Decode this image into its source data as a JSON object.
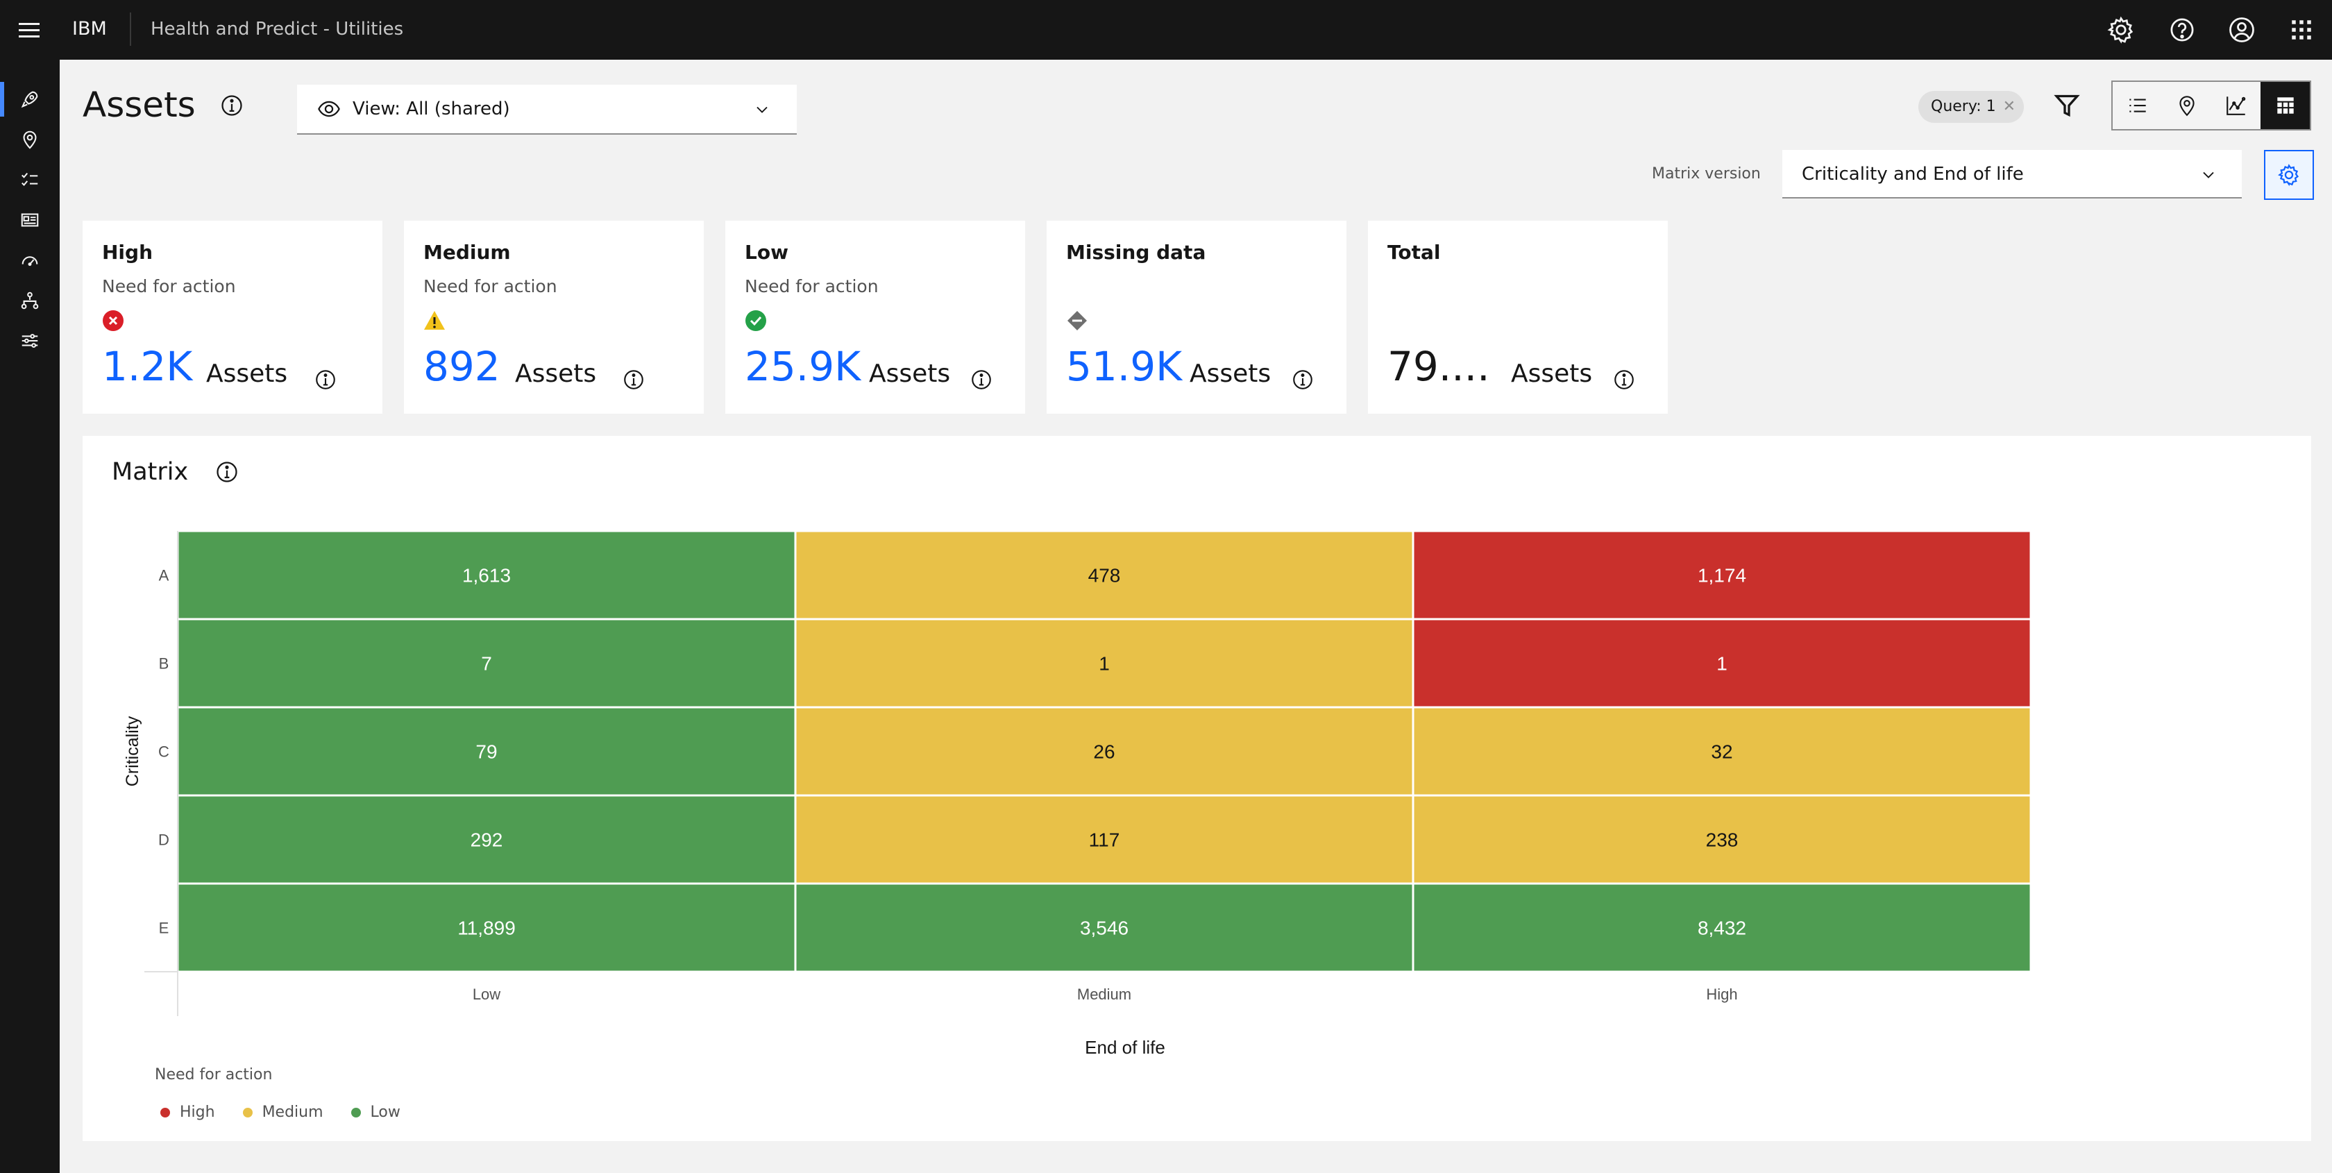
{
  "header": {
    "brand": "IBM",
    "product": "Health and Predict - Utilities",
    "icons": [
      "settings-icon",
      "help-icon",
      "user-avatar-icon",
      "app-switcher-icon"
    ]
  },
  "sidebar": {
    "items": [
      {
        "name": "sidebar-item-assets",
        "icon": "rocket-icon",
        "active": true
      },
      {
        "name": "sidebar-item-locations",
        "icon": "location-icon",
        "active": false
      },
      {
        "name": "sidebar-item-checklist",
        "icon": "checklist-icon",
        "active": false
      },
      {
        "name": "sidebar-item-id",
        "icon": "id-card-icon",
        "active": false
      },
      {
        "name": "sidebar-item-meter",
        "icon": "meter-icon",
        "active": false
      },
      {
        "name": "sidebar-item-hierarchy",
        "icon": "hierarchy-icon",
        "active": false
      },
      {
        "name": "sidebar-item-settings",
        "icon": "settings-adjust-icon",
        "active": false
      }
    ]
  },
  "page": {
    "title": "Assets",
    "view_label": "View: All (shared)",
    "query_tag": "Query: 1",
    "matrix_version_label": "Matrix version",
    "matrix_version_value": "Criticality and End of life"
  },
  "cards": [
    {
      "title": "High",
      "subtitle": "Need for action",
      "status": "error-icon",
      "value": "1.2K",
      "unit": "Assets",
      "color": "#da1e28"
    },
    {
      "title": "Medium",
      "subtitle": "Need for action",
      "status": "warning-icon",
      "value": "892",
      "unit": "Assets",
      "color": "#f1c21b"
    },
    {
      "title": "Low",
      "subtitle": "Need for action",
      "status": "checkmark-icon",
      "value": "25.9K",
      "unit": "Assets",
      "color": "#24a148"
    },
    {
      "title": "Missing data",
      "subtitle": "",
      "status": "missing-data-icon",
      "value": "51.9K",
      "unit": "Assets",
      "color": "#6f6f6f"
    },
    {
      "title": "Total",
      "subtitle": "",
      "status": "",
      "value": "79....",
      "unit": "Assets",
      "color": ""
    }
  ],
  "matrix": {
    "title": "Matrix",
    "ylabel": "Criticality",
    "xlabel": "End of life",
    "legend_title": "Need for action",
    "legend": [
      {
        "label": "High",
        "color": "#c9302c"
      },
      {
        "label": "Medium",
        "color": "#e8c148"
      },
      {
        "label": "Low",
        "color": "#4f9c52"
      }
    ]
  },
  "chart_data": {
    "type": "heatmap",
    "title": "",
    "xlabel": "End of life",
    "ylabel": "Criticality",
    "x": [
      "Low",
      "Medium",
      "High"
    ],
    "y": [
      "A",
      "B",
      "C",
      "D",
      "E"
    ],
    "values": [
      [
        1613,
        478,
        1174
      ],
      [
        7,
        1,
        1
      ],
      [
        79,
        26,
        32
      ],
      [
        292,
        117,
        238
      ],
      [
        11899,
        3546,
        8432
      ]
    ],
    "labels": [
      [
        "1,613",
        "478",
        "1,174"
      ],
      [
        "7",
        "1",
        "1"
      ],
      [
        "79",
        "26",
        "32"
      ],
      [
        "292",
        "117",
        "238"
      ],
      [
        "11,899",
        "3,546",
        "8,432"
      ]
    ],
    "levels": [
      [
        "Low",
        "Medium",
        "High"
      ],
      [
        "Low",
        "Medium",
        "High"
      ],
      [
        "Low",
        "Medium",
        "Medium"
      ],
      [
        "Low",
        "Medium",
        "Medium"
      ],
      [
        "Low",
        "Low",
        "Low"
      ]
    ],
    "level_colors": {
      "High": "#c9302c",
      "Medium": "#e8c148",
      "Low": "#4f9c52"
    },
    "legend_placement": "bottom-left"
  }
}
